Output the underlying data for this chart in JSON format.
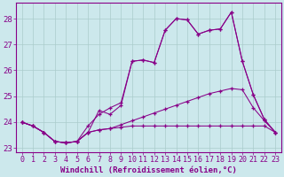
{
  "bg_color": "#cce8ec",
  "grid_color": "#aacccc",
  "line_color": "#880088",
  "xlabel": "Windchill (Refroidissement éolien,°C)",
  "xlabel_fontsize": 6.5,
  "tick_fontsize": 6,
  "xlim": [
    -0.5,
    23.5
  ],
  "ylim": [
    22.85,
    28.6
  ],
  "yticks": [
    23,
    24,
    25,
    26,
    27,
    28
  ],
  "xticks": [
    0,
    1,
    2,
    3,
    4,
    5,
    6,
    7,
    8,
    9,
    10,
    11,
    12,
    13,
    14,
    15,
    16,
    17,
    18,
    19,
    20,
    21,
    22,
    23
  ],
  "series1_x": [
    0,
    1,
    2,
    3,
    4,
    5,
    6,
    7,
    8,
    9,
    10,
    11,
    12,
    13,
    14,
    15,
    16,
    17,
    18,
    19,
    20,
    21,
    22,
    23
  ],
  "series1_y": [
    24.0,
    23.85,
    23.6,
    23.25,
    23.2,
    23.25,
    23.6,
    23.7,
    23.75,
    23.8,
    23.85,
    23.85,
    23.85,
    23.85,
    23.85,
    23.85,
    23.85,
    23.85,
    23.85,
    23.85,
    23.85,
    23.85,
    23.85,
    23.6
  ],
  "series2_x": [
    0,
    1,
    2,
    3,
    4,
    5,
    6,
    7,
    8,
    9,
    10,
    11,
    12,
    13,
    14,
    15,
    16,
    17,
    18,
    19,
    20,
    21,
    22,
    23
  ],
  "series2_y": [
    24.0,
    23.85,
    23.6,
    23.25,
    23.2,
    23.25,
    23.6,
    23.7,
    23.75,
    23.9,
    24.05,
    24.2,
    24.35,
    24.5,
    24.65,
    24.8,
    24.95,
    25.1,
    25.2,
    25.3,
    25.25,
    24.55,
    24.05,
    23.6
  ],
  "series3_x": [
    0,
    1,
    2,
    3,
    4,
    5,
    6,
    7,
    8,
    9,
    10,
    11,
    12,
    13,
    14,
    15,
    16,
    17,
    18,
    19,
    20,
    21,
    22,
    23
  ],
  "series3_y": [
    24.0,
    23.85,
    23.6,
    23.25,
    23.2,
    23.25,
    23.6,
    24.45,
    24.3,
    24.65,
    26.35,
    26.4,
    26.3,
    27.55,
    28.0,
    27.95,
    27.4,
    27.55,
    27.6,
    28.25,
    26.35,
    25.05,
    24.1,
    23.6
  ],
  "series4_x": [
    0,
    1,
    2,
    3,
    4,
    5,
    6,
    7,
    8,
    9,
    10,
    11,
    12,
    13,
    14,
    15,
    16,
    17,
    18,
    19,
    20,
    21,
    22,
    23
  ],
  "series4_y": [
    24.0,
    23.85,
    23.6,
    23.25,
    23.2,
    23.25,
    23.85,
    24.3,
    24.55,
    24.75,
    26.35,
    26.4,
    26.3,
    27.55,
    28.0,
    27.95,
    27.4,
    27.55,
    27.6,
    28.25,
    26.35,
    25.05,
    24.1,
    23.6
  ]
}
